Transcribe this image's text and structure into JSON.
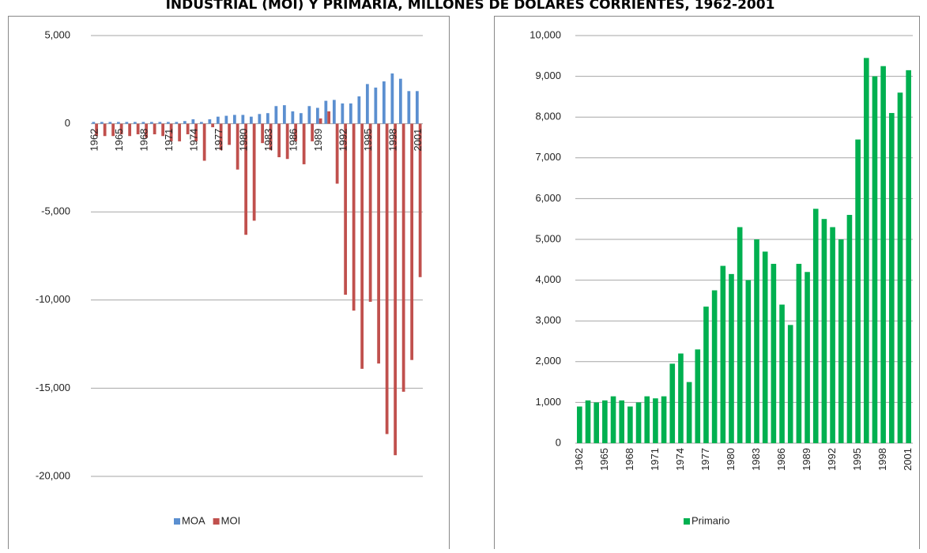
{
  "title": "INDUSTRIAL (MOI) Y PRIMARIA, MILLONES DE DOLARES CORRIENTES, 1962-2001",
  "chart_data": [
    {
      "type": "bar",
      "categories": [
        "1962",
        null,
        null,
        "1965",
        null,
        null,
        "1968",
        null,
        null,
        "1971",
        null,
        null,
        "1974",
        null,
        null,
        "1977",
        null,
        null,
        "1980",
        null,
        null,
        "1983",
        null,
        null,
        "1986",
        null,
        null,
        "1989",
        null,
        null,
        "1992",
        null,
        null,
        "1995",
        null,
        null,
        "1998",
        null,
        null,
        "2001"
      ],
      "series": [
        {
          "name": "MOA",
          "color": "#5b8fd0",
          "values": [
            100,
            100,
            100,
            100,
            100,
            100,
            100,
            100,
            100,
            100,
            100,
            150,
            250,
            100,
            250,
            400,
            450,
            500,
            500,
            400,
            550,
            600,
            1000,
            1050,
            700,
            600,
            1000,
            900,
            1300,
            1350,
            1150,
            1150,
            1550,
            2250,
            2050,
            2400,
            2850,
            2550,
            1850,
            1850
          ]
        },
        {
          "name": "MOI",
          "color": "#c0504d",
          "values": [
            -700,
            -700,
            -700,
            -600,
            -700,
            -600,
            -800,
            -600,
            -700,
            -1000,
            -1000,
            -600,
            -1000,
            -2100,
            -200,
            -1500,
            -1200,
            -2600,
            -6300,
            -5500,
            -1100,
            -1500,
            -1900,
            -2000,
            -1000,
            -2300,
            -1000,
            300,
            700,
            -3400,
            -9700,
            -10600,
            -13900,
            -10100,
            -13600,
            -17600,
            -18800,
            -15200,
            -13400,
            -8700
          ]
        }
      ],
      "ylim": [
        -20000,
        5000
      ],
      "yticks": [
        {
          "value": 5000,
          "label": "5,000"
        },
        0,
        {
          "value": -5000,
          "label": "-5,000"
        },
        {
          "value": -10000,
          "label": "-10,000"
        },
        {
          "value": -15000,
          "label": "-15,000"
        },
        {
          "value": -20000,
          "label": "-20,000"
        }
      ],
      "grid": true,
      "legend": "bottom"
    },
    {
      "type": "bar",
      "categories": [
        "1962",
        null,
        null,
        "1965",
        null,
        null,
        "1968",
        null,
        null,
        "1971",
        null,
        null,
        "1974",
        null,
        null,
        "1977",
        null,
        null,
        "1980",
        null,
        null,
        "1983",
        null,
        null,
        "1986",
        null,
        null,
        "1989",
        null,
        null,
        "1992",
        null,
        null,
        "1995",
        null,
        null,
        "1998",
        null,
        null,
        "2001"
      ],
      "series": [
        {
          "name": "Primario",
          "color": "#00b050",
          "values": [
            900,
            1050,
            1000,
            1050,
            1150,
            1050,
            900,
            1000,
            1150,
            1100,
            1150,
            1950,
            2200,
            1500,
            2300,
            3350,
            3750,
            4350,
            4150,
            5300,
            4000,
            5000,
            4700,
            4400,
            3400,
            2900,
            4400,
            4200,
            5750,
            5500,
            5300,
            5000,
            5600,
            7450,
            9450,
            9000,
            9250,
            8100,
            8600,
            9150
          ]
        }
      ],
      "ylim": [
        0,
        10000
      ],
      "yticks": [
        0,
        {
          "value": 1000,
          "label": "1,000"
        },
        {
          "value": 2000,
          "label": "2,000"
        },
        {
          "value": 3000,
          "label": "3,000"
        },
        {
          "value": 4000,
          "label": "4,000"
        },
        {
          "value": 5000,
          "label": "5,000"
        },
        {
          "value": 6000,
          "label": "6,000"
        },
        {
          "value": 7000,
          "label": "7,000"
        },
        {
          "value": 8000,
          "label": "8,000"
        },
        {
          "value": 9000,
          "label": "9,000"
        },
        {
          "value": 10000,
          "label": "10,000"
        }
      ],
      "grid": true,
      "legend": "bottom"
    }
  ]
}
